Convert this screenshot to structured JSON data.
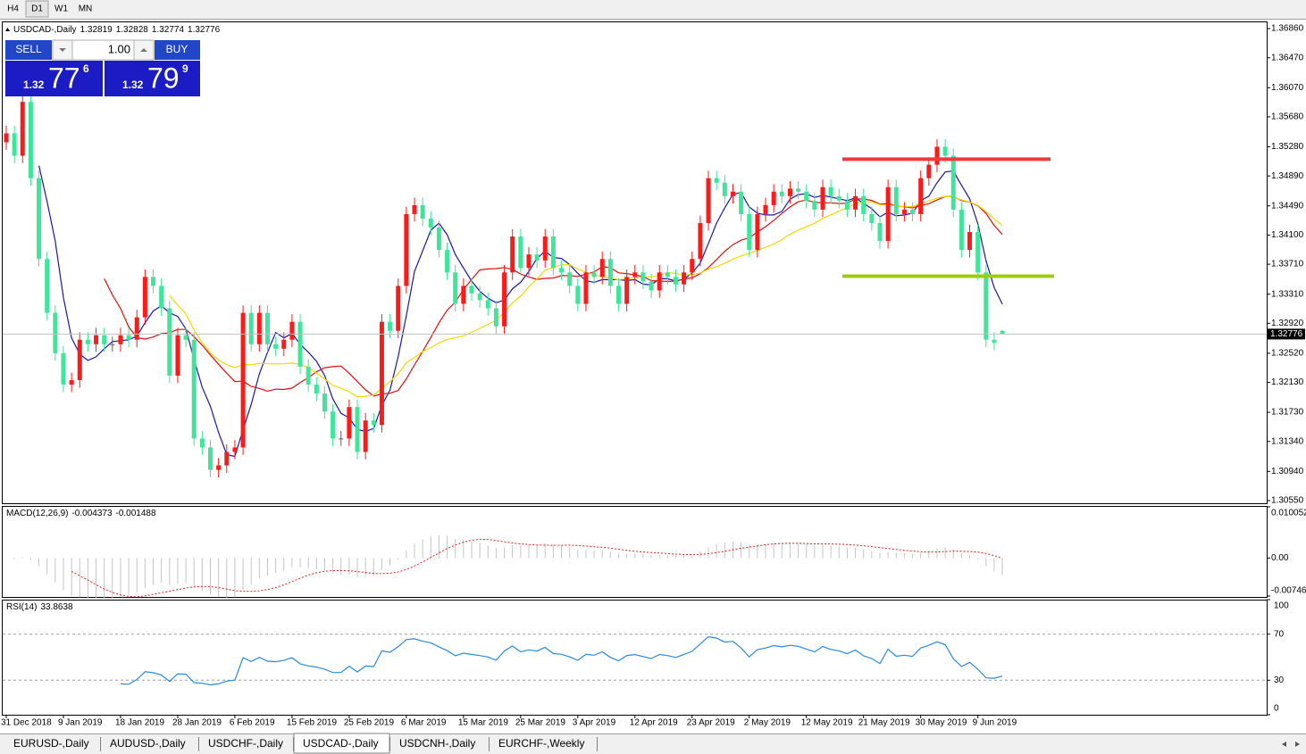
{
  "toolbar": {
    "timeframes": [
      "H4",
      "D1",
      "W1",
      "MN"
    ]
  },
  "trade_panel": {
    "sell_label": "SELL",
    "buy_label": "BUY",
    "lots": "1.00",
    "bid": {
      "big": "1.32",
      "pips": "77",
      "point": "6"
    },
    "ask": {
      "big": "1.32",
      "pips": "79",
      "point": "9"
    }
  },
  "chart_data": {
    "type": "candlestick",
    "symbol": "USDCAD-,Daily",
    "categories": [
      "31 Dec 2018",
      null,
      null,
      null,
      null,
      null,
      null,
      "9 Jan 2019",
      null,
      null,
      null,
      null,
      null,
      null,
      "18 Jan 2019",
      null,
      null,
      null,
      null,
      null,
      null,
      "28 Jan 2019",
      null,
      null,
      null,
      null,
      null,
      null,
      "6 Feb 2019",
      null,
      null,
      null,
      null,
      null,
      null,
      "15 Feb 2019",
      null,
      null,
      null,
      null,
      null,
      null,
      "25 Feb 2019",
      null,
      null,
      null,
      null,
      null,
      null,
      "6 Mar 2019",
      null,
      null,
      null,
      null,
      null,
      null,
      "15 Mar 2019",
      null,
      null,
      null,
      null,
      null,
      null,
      "25 Mar 2019",
      null,
      null,
      null,
      null,
      null,
      null,
      "3 Apr 2019",
      null,
      null,
      null,
      null,
      null,
      null,
      "12 Apr 2019",
      null,
      null,
      null,
      null,
      null,
      null,
      "23 Apr 2019",
      null,
      null,
      null,
      null,
      null,
      null,
      "2 May 2019",
      null,
      null,
      null,
      null,
      null,
      null,
      "12 May 2019",
      null,
      null,
      null,
      null,
      null,
      null,
      "21 May 2019",
      null,
      null,
      null,
      null,
      null,
      null,
      "30 May 2019",
      null,
      null,
      null,
      null,
      null,
      null,
      "9 Jun 2019",
      null,
      null,
      null
    ],
    "open": [
      1.3534,
      1.3546,
      1.3516,
      1.3588,
      1.3486,
      1.3378,
      1.3306,
      1.3252,
      1.321,
      1.3216,
      1.327,
      1.3264,
      1.3276,
      1.3264,
      1.3264,
      1.3276,
      1.327,
      1.33,
      1.3354,
      1.3342,
      1.3312,
      1.3222,
      1.3276,
      1.327,
      1.3138,
      1.3126,
      1.3096,
      1.3102,
      1.312,
      1.3126,
      1.3306,
      1.3264,
      1.3306,
      1.3264,
      1.3258,
      1.327,
      1.3294,
      1.3234,
      1.321,
      1.3198,
      1.3174,
      1.3138,
      1.3138,
      1.318,
      1.312,
      1.3162,
      1.3156,
      1.3294,
      1.3282,
      1.3342,
      1.3438,
      1.345,
      1.3432,
      1.342,
      1.339,
      1.336,
      1.3318,
      1.3342,
      1.3332,
      1.3323,
      1.3312,
      1.3288,
      1.336,
      1.3408,
      1.3366,
      1.3384,
      1.3376,
      1.3408,
      1.3366,
      1.336,
      1.3342,
      1.3318,
      1.336,
      1.3354,
      1.3378,
      1.3342,
      1.3318,
      1.3354,
      1.336,
      1.3348,
      1.3336,
      1.336,
      1.3354,
      1.3344,
      1.336,
      1.3378,
      1.3426,
      1.3486,
      1.348,
      1.3462,
      1.3468,
      1.3438,
      1.339,
      1.3438,
      1.345,
      1.3468,
      1.3462,
      1.3472,
      1.3468,
      1.3456,
      1.3444,
      1.3474,
      1.3462,
      1.3456,
      1.3444,
      1.3462,
      1.3438,
      1.3426,
      1.3402,
      1.3474,
      1.3438,
      1.3444,
      1.3438,
      1.3486,
      1.3504,
      1.3528,
      1.3516,
      1.3444,
      1.339,
      1.3414,
      1.336,
      1.327,
      1.32819
    ],
    "high": [
      1.3556,
      1.3556,
      1.3598,
      1.3598,
      1.3496,
      1.3388,
      1.3316,
      1.3262,
      1.3226,
      1.328,
      1.328,
      1.3286,
      1.3286,
      1.3274,
      1.3286,
      1.3286,
      1.331,
      1.3364,
      1.3364,
      1.3352,
      1.3322,
      1.3286,
      1.3286,
      1.328,
      1.3148,
      1.3136,
      1.3112,
      1.313,
      1.3136,
      1.3316,
      1.3316,
      1.3316,
      1.3316,
      1.3274,
      1.328,
      1.3304,
      1.3304,
      1.3244,
      1.322,
      1.3208,
      1.3184,
      1.3148,
      1.319,
      1.319,
      1.3172,
      1.3172,
      1.3304,
      1.3304,
      1.3352,
      1.3448,
      1.346,
      1.346,
      1.3442,
      1.343,
      1.34,
      1.337,
      1.3352,
      1.3352,
      1.3342,
      1.3333,
      1.3322,
      1.337,
      1.3418,
      1.3418,
      1.3394,
      1.3394,
      1.3418,
      1.3418,
      1.3376,
      1.337,
      1.3352,
      1.337,
      1.337,
      1.3388,
      1.3388,
      1.3352,
      1.3364,
      1.337,
      1.337,
      1.3358,
      1.337,
      1.337,
      1.3364,
      1.337,
      1.3388,
      1.3436,
      1.3496,
      1.3496,
      1.349,
      1.3478,
      1.3478,
      1.3448,
      1.3448,
      1.346,
      1.3478,
      1.3478,
      1.3482,
      1.3482,
      1.3478,
      1.3466,
      1.3484,
      1.3484,
      1.3472,
      1.3466,
      1.3472,
      1.3472,
      1.3448,
      1.3436,
      1.3484,
      1.3484,
      1.3454,
      1.3454,
      1.3496,
      1.3514,
      1.3538,
      1.3538,
      1.3526,
      1.3454,
      1.3424,
      1.3424,
      1.337,
      1.328,
      1.32828
    ],
    "low": [
      1.3524,
      1.3506,
      1.3506,
      1.3476,
      1.3368,
      1.3296,
      1.3242,
      1.32,
      1.32,
      1.3206,
      1.3254,
      1.3254,
      1.3254,
      1.3254,
      1.3254,
      1.326,
      1.326,
      1.329,
      1.3332,
      1.3302,
      1.3212,
      1.3212,
      1.326,
      1.3128,
      1.3116,
      1.3086,
      1.3086,
      1.3092,
      1.311,
      1.3116,
      1.3254,
      1.3254,
      1.3254,
      1.3248,
      1.3248,
      1.326,
      1.3224,
      1.32,
      1.3188,
      1.3164,
      1.3128,
      1.3128,
      1.3128,
      1.311,
      1.311,
      1.3146,
      1.3146,
      1.3272,
      1.3272,
      1.3332,
      1.3428,
      1.3422,
      1.341,
      1.338,
      1.335,
      1.3308,
      1.3308,
      1.3322,
      1.3313,
      1.3302,
      1.3278,
      1.3278,
      1.335,
      1.3356,
      1.3356,
      1.3366,
      1.3366,
      1.3356,
      1.335,
      1.3332,
      1.3308,
      1.3308,
      1.3344,
      1.3344,
      1.3332,
      1.3308,
      1.3308,
      1.3344,
      1.3338,
      1.3326,
      1.3326,
      1.3344,
      1.3334,
      1.3334,
      1.335,
      1.3368,
      1.3416,
      1.347,
      1.3452,
      1.3452,
      1.3428,
      1.338,
      1.338,
      1.3428,
      1.344,
      1.3452,
      1.3452,
      1.3458,
      1.3446,
      1.3434,
      1.3434,
      1.3452,
      1.3446,
      1.3434,
      1.3434,
      1.3428,
      1.3416,
      1.3392,
      1.3392,
      1.3428,
      1.3428,
      1.3428,
      1.3428,
      1.3476,
      1.3494,
      1.3506,
      1.3434,
      1.338,
      1.338,
      1.335,
      1.326,
      1.3256,
      1.32774
    ],
    "close": [
      1.3546,
      1.3516,
      1.3588,
      1.3486,
      1.3378,
      1.3306,
      1.3252,
      1.321,
      1.3216,
      1.327,
      1.3264,
      1.3276,
      1.3264,
      1.3264,
      1.3276,
      1.327,
      1.33,
      1.3354,
      1.3342,
      1.3312,
      1.3222,
      1.3276,
      1.327,
      1.3138,
      1.3126,
      1.3096,
      1.3102,
      1.312,
      1.3126,
      1.3306,
      1.3264,
      1.3306,
      1.3264,
      1.3258,
      1.327,
      1.3294,
      1.3234,
      1.321,
      1.3198,
      1.3174,
      1.3138,
      1.3138,
      1.318,
      1.312,
      1.3162,
      1.3156,
      1.3294,
      1.3282,
      1.3342,
      1.3438,
      1.345,
      1.3432,
      1.342,
      1.339,
      1.336,
      1.3318,
      1.3342,
      1.3332,
      1.3323,
      1.3312,
      1.3288,
      1.336,
      1.3408,
      1.3366,
      1.3384,
      1.3376,
      1.3408,
      1.3366,
      1.336,
      1.3342,
      1.3318,
      1.336,
      1.3354,
      1.3378,
      1.3342,
      1.3318,
      1.3354,
      1.336,
      1.3348,
      1.3336,
      1.336,
      1.3354,
      1.3344,
      1.336,
      1.3378,
      1.3426,
      1.3486,
      1.348,
      1.3462,
      1.3468,
      1.3438,
      1.339,
      1.3438,
      1.345,
      1.3468,
      1.3462,
      1.3472,
      1.3468,
      1.3456,
      1.3444,
      1.3474,
      1.3462,
      1.3456,
      1.3444,
      1.3462,
      1.3438,
      1.3426,
      1.3402,
      1.3474,
      1.3438,
      1.3444,
      1.3438,
      1.3486,
      1.3504,
      1.3528,
      1.3516,
      1.3444,
      1.339,
      1.3414,
      1.336,
      1.327,
      1.3266,
      1.32776
    ],
    "up_color": "#ff1a1a",
    "down_color": "#3ee59a",
    "ylim": [
      1.30514,
      1.36956
    ],
    "yticks": [
      {
        "value": 1.3686,
        "label": "1.36860"
      },
      {
        "value": 1.3647,
        "label": "1.36470"
      },
      {
        "value": 1.3607,
        "label": "1.36070"
      },
      {
        "value": 1.3568,
        "label": "1.35680"
      },
      {
        "value": 1.3528,
        "label": "1.35280"
      },
      {
        "value": 1.3489,
        "label": "1.34890"
      },
      {
        "value": 1.3449,
        "label": "1.34490"
      },
      {
        "value": 1.341,
        "label": "1.34100"
      },
      {
        "value": 1.3371,
        "label": "1.33710"
      },
      {
        "value": 1.3331,
        "label": "1.33310"
      },
      {
        "value": 1.3292,
        "label": "1.32920"
      },
      {
        "value": 1.3252,
        "label": "1.32520"
      },
      {
        "value": 1.3213,
        "label": "1.32130"
      },
      {
        "value": 1.3173,
        "label": "1.31730"
      },
      {
        "value": 1.3134,
        "label": "1.31340"
      },
      {
        "value": 1.3094,
        "label": "1.30940"
      },
      {
        "value": 1.3055,
        "label": "1.30550"
      }
    ],
    "moving_averages": [
      {
        "period": 5,
        "color": "#1a1aa8"
      },
      {
        "period": 13,
        "color": "#e01010"
      },
      {
        "period": 21,
        "color": "#f5d800"
      }
    ],
    "hlines": [
      {
        "price": 1.35115,
        "color": "#f03a3a"
      },
      {
        "price": 1.3355,
        "color": "#9ccc10"
      }
    ],
    "macd": {
      "label": "MACD(12,26,9)",
      "main": -0.004373,
      "signal": -0.001488,
      "ylim": [
        -0.007469,
        0.010052
      ],
      "yticks": [
        0.010052,
        {
          "value": 0,
          "label": "0.00"
        },
        -0.007469
      ],
      "histogram_color": "#c4c4c4",
      "signal_color": "#e02020"
    },
    "rsi": {
      "label": "RSI(14)",
      "value": 33.8638,
      "ylim": [
        0,
        100
      ],
      "yticks": [
        100,
        70,
        30,
        0
      ],
      "color": "#2a8ae0"
    }
  },
  "tabs": [
    "EURUSD-,Daily",
    "AUDUSD-,Daily",
    "USDCHF-,Daily",
    "USDCAD-,Daily",
    "USDCNH-,Daily",
    "EURCHF-,Weekly"
  ],
  "active_tab": "USDCAD-,Daily"
}
